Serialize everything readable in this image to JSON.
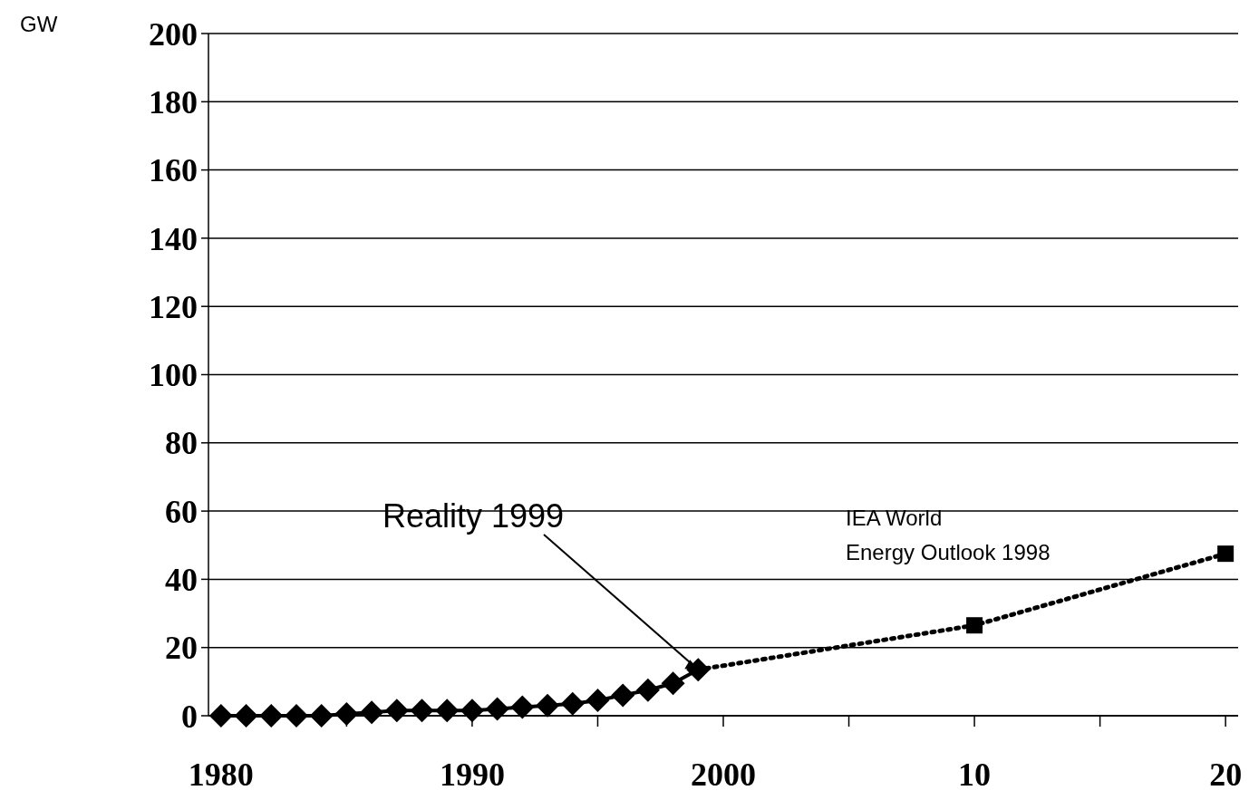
{
  "chart_data": {
    "type": "line",
    "ylabel": "GW",
    "xlim": [
      1979.5,
      2020.5
    ],
    "xticks": [
      {
        "value": 1980,
        "label": "1980"
      },
      {
        "value": 1990,
        "label": "1990"
      },
      {
        "value": 2000,
        "label": "2000"
      },
      {
        "value": 2010,
        "label": "10"
      },
      {
        "value": 2020,
        "label": "20"
      },
      {
        "value": 1985,
        "label": null
      },
      {
        "value": 1995,
        "label": null
      },
      {
        "value": 2005,
        "label": null
      },
      {
        "value": 2015,
        "label": null
      }
    ],
    "ylim": [
      0,
      200
    ],
    "yticks": [
      0,
      20,
      40,
      60,
      80,
      100,
      120,
      140,
      160,
      180,
      200
    ],
    "grid": "y",
    "series": [
      {
        "color": "#000000",
        "marker": "diamond",
        "line_style": "solid",
        "x": [
          1980,
          1981,
          1982,
          1983,
          1984,
          1985,
          1986,
          1987,
          1988,
          1989,
          1990,
          1991,
          1992,
          1993,
          1994,
          1995,
          1996,
          1997,
          1998,
          1999
        ],
        "values": [
          0,
          0,
          0,
          0,
          0,
          0.5,
          1,
          1.5,
          1.5,
          1.5,
          1.5,
          2,
          2.5,
          3,
          3.5,
          4.5,
          6,
          7.5,
          9.5,
          13.5
        ]
      },
      {
        "type": "line",
        "color": "#000000",
        "marker": "none",
        "line_style": "dotted",
        "x": [
          1999,
          2010,
          2020
        ],
        "values": [
          13.5,
          26.5,
          47.5
        ]
      },
      {
        "type": "scatter",
        "color": "#000000",
        "marker": "square",
        "x": [
          2010,
          2020
        ],
        "values": [
          26.5,
          47.5
        ]
      }
    ],
    "annotations": [
      {
        "text": "Reality 1999",
        "x": 1999,
        "y": 13.5
      },
      "IEA World\nEnergy Outlook 1998"
    ]
  }
}
